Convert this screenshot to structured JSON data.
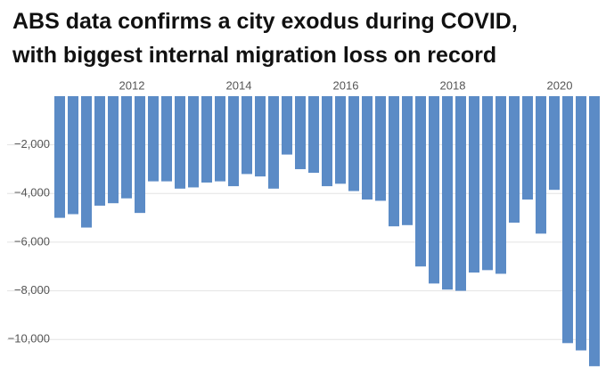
{
  "chart_data": {
    "type": "bar",
    "title": [
      "ABS data confirms a city exodus during COVID,",
      "with biggest internal migration loss on record"
    ],
    "categories": [
      null,
      null,
      null,
      null,
      null,
      "2012",
      null,
      null,
      null,
      null,
      null,
      null,
      null,
      "2014",
      null,
      null,
      null,
      null,
      null,
      null,
      null,
      "2016",
      null,
      null,
      null,
      null,
      null,
      null,
      null,
      "2018",
      null,
      null,
      null,
      null,
      null,
      null,
      null,
      "2020",
      null,
      null,
      null
    ],
    "values": [
      -5000,
      -4850,
      -5400,
      -4500,
      -4400,
      -4200,
      -4800,
      -3500,
      -3500,
      -3800,
      -3750,
      -3550,
      -3500,
      -3700,
      -3200,
      -3300,
      -3800,
      -2400,
      -3000,
      -3150,
      -3700,
      -3600,
      -3900,
      -4250,
      -4300,
      -5350,
      -5300,
      -7000,
      -7700,
      -7950,
      -8000,
      -7250,
      -7150,
      -7300,
      -5200,
      -4250,
      -5650,
      -3850,
      -10150,
      -10450,
      -11100
    ],
    "color": "#5b8bc6",
    "ylim": [
      -11200,
      0
    ],
    "yticks": [
      {
        "value": -2000,
        "label": "−2,000"
      },
      {
        "value": -4000,
        "label": "−4,000"
      },
      {
        "value": -6000,
        "label": "−6,000"
      },
      {
        "value": -8000,
        "label": "−8,000"
      },
      {
        "value": -10000,
        "label": "−10,000"
      }
    ],
    "grid": true
  }
}
